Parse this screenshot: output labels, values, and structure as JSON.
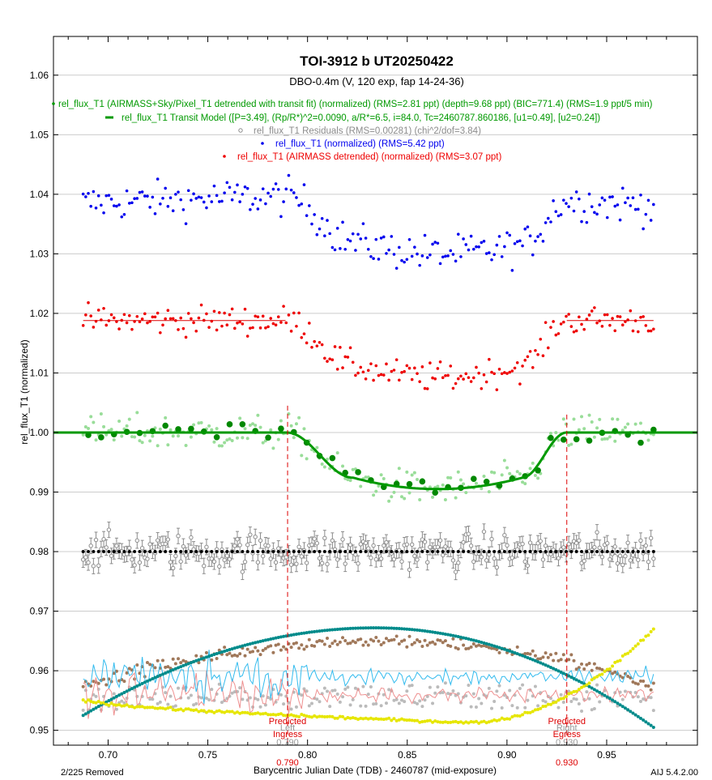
{
  "chart_data": {
    "type": "scatter",
    "title": "TOI-3912 b UT20250422",
    "subtitle": "DBO-0.4m (V, 120 exp, fap 14-24-36)",
    "xlabel": "Barycentric Julian Date (TDB) - 2460787 (mid-exposure)",
    "ylabel": "rel_flux_T1 (normalized)",
    "xlim": [
      0.6726,
      0.9955
    ],
    "ylim": [
      0.9475,
      1.0665
    ],
    "x_ticks": [
      "0.70",
      "0.75",
      "0.80",
      "0.85",
      "0.90",
      "0.95"
    ],
    "y_ticks": [
      "0.95",
      "0.96",
      "0.97",
      "0.98",
      "0.99",
      "1.00",
      "1.01",
      "1.02",
      "1.03",
      "1.04",
      "1.05",
      "1.06"
    ],
    "grid": true,
    "legend": [
      {
        "text": "rel_flux_T1 (AIRMASS+Sky/Pixel_T1 detrended with transit fit) (normalized) (RMS=2.81 ppt) (depth=9.68 ppt) (BIC=771.4) (RMS=1.9 ppt/5 min)",
        "color": "#009900"
      },
      {
        "text": "rel_flux_T1 Transit Model ([P=3.49], (Rp/R*)^2=0.0090, a/R*=6.5, i=84.0, Tc=2460787.860186, [u1=0.49], [u2=0.24])",
        "color": "#009900"
      },
      {
        "text": "rel_flux_T1 Residuals (RMS=0.00281) (chi^2/dof=3.84)",
        "color": "#8c8c8c"
      },
      {
        "text": "rel_flux_T1 (normalized) (RMS=5.42 ppt)",
        "color": "#0000ee"
      },
      {
        "text": "rel_flux_T1 (AIRMASS detrended) (normalized) (RMS=3.07 ppt)",
        "color": "#ee0000"
      }
    ],
    "x_start": 0.6875,
    "x_end": 0.9735,
    "transit_model": {
      "ingress_start": 0.7895,
      "full_start": 0.823,
      "full_end": 0.9075,
      "egress_end": 0.93,
      "baseline": 1.0,
      "depth_level": 0.9905
    },
    "series": [
      {
        "name": "rel_flux_T1 (normalized)",
        "color": "#0000ee",
        "out_of_transit_level": 1.0385,
        "in_transit_level": 1.029,
        "scatter": 0.0032
      },
      {
        "name": "rel_flux_T1 (AIRMASS detrended)",
        "color": "#ee0000",
        "out_of_transit_level": 1.0188,
        "in_transit_level": 1.0093,
        "scatter": 0.0025
      },
      {
        "name": "rel_flux_T1 (detrended with transit fit)",
        "color": "#009900",
        "binned_color": "#008800",
        "raw_color": "#99dd99",
        "scatter": 0.0028
      },
      {
        "name": "rel_flux_T1 Residuals",
        "color": "#8c8c8c",
        "level": 0.98,
        "scatter": 0.0028,
        "error": 0.0013
      }
    ],
    "baseline_segments": [
      {
        "x": [
          0.6875,
          0.789
        ],
        "y": 1.0188,
        "color": "#dd0000"
      },
      {
        "x": [
          0.93,
          0.9735
        ],
        "y": 1.0188,
        "color": "#dd0000"
      }
    ],
    "aux_curves": {
      "airmass": {
        "color": "#008b8b",
        "start": 0.9525,
        "peak": 0.9672,
        "peak_x": 0.834,
        "end": 0.9505
      },
      "sky_yellow": {
        "color": "#e6e600",
        "start": 0.9552,
        "min": 0.9513,
        "min_x": 0.88,
        "end": 0.967
      },
      "brown": {
        "color": "#a0785a",
        "start": 0.9575,
        "peak": 0.965,
        "peak_x": 0.84,
        "end": 0.9575
      },
      "gray": {
        "color": "#bbbbbb",
        "level": 0.9555
      },
      "cyan_line": {
        "color": "#33bbee",
        "level": 0.959
      },
      "pink_line": {
        "color": "#ee9090",
        "level": 0.956
      }
    },
    "markers": [
      {
        "x": 0.79,
        "y_top": 1.0045,
        "label_lines": [
          "Predicted",
          "Ingress"
        ],
        "sub_label": "Left",
        "gray_value": "0.790",
        "red_value": "0.790",
        "color": "#dd0000"
      },
      {
        "x": 0.93,
        "y_top": 1.003,
        "label_lines": [
          "Predicted",
          "Egress"
        ],
        "sub_label": "Right",
        "gray_value": "0.930",
        "red_value": "0.930",
        "color": "#dd0000"
      }
    ]
  },
  "footer": {
    "removed": "2/225 Removed",
    "version": "AIJ 5.4.2.00"
  }
}
